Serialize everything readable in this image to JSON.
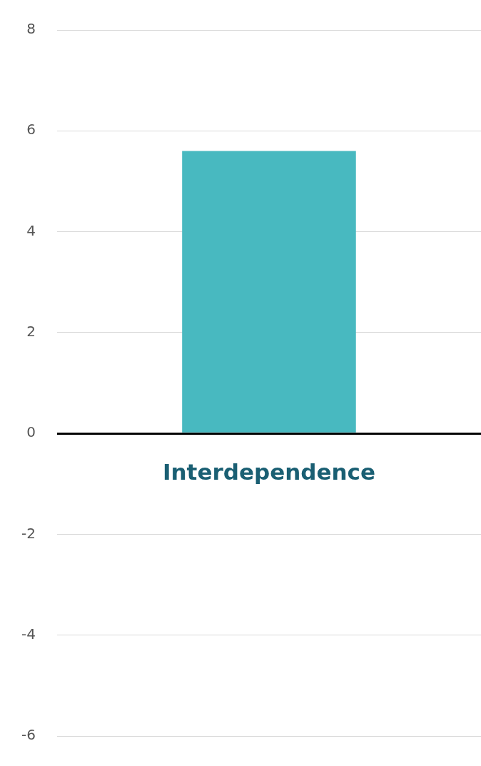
{
  "chart_data": {
    "type": "bar",
    "categories": [
      "Interdependence"
    ],
    "values": [
      5.6
    ],
    "color": "#48b9c0",
    "ylim": [
      -6,
      8
    ],
    "yticks": [
      -6,
      -4,
      -2,
      0,
      2,
      4,
      6,
      8
    ],
    "grid": "y"
  }
}
